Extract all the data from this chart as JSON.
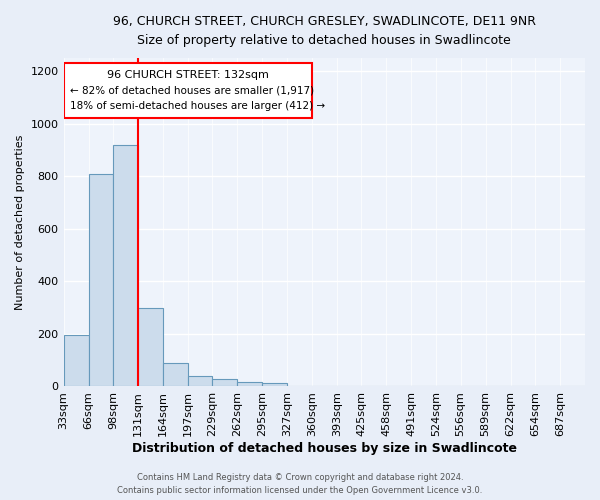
{
  "title1": "96, CHURCH STREET, CHURCH GRESLEY, SWADLINCOTE, DE11 9NR",
  "title2": "Size of property relative to detached houses in Swadlincote",
  "xlabel": "Distribution of detached houses by size in Swadlincote",
  "ylabel": "Number of detached properties",
  "bin_labels": [
    "33sqm",
    "66sqm",
    "98sqm",
    "131sqm",
    "164sqm",
    "197sqm",
    "229sqm",
    "262sqm",
    "295sqm",
    "327sqm",
    "360sqm",
    "393sqm",
    "425sqm",
    "458sqm",
    "491sqm",
    "524sqm",
    "556sqm",
    "589sqm",
    "622sqm",
    "654sqm",
    "687sqm"
  ],
  "bin_edges": [
    33,
    66,
    98,
    131,
    164,
    197,
    229,
    262,
    295,
    327,
    360,
    393,
    425,
    458,
    491,
    524,
    556,
    589,
    622,
    654,
    687,
    720
  ],
  "bar_heights": [
    195,
    810,
    920,
    300,
    90,
    40,
    30,
    18,
    15,
    0,
    0,
    0,
    0,
    0,
    0,
    0,
    0,
    0,
    0,
    0,
    0
  ],
  "bar_color": "#ccdcec",
  "bar_edge_color": "#6699bb",
  "bar_edge_width": 0.8,
  "red_line_x": 131,
  "ylim": [
    0,
    1250
  ],
  "yticks": [
    0,
    200,
    400,
    600,
    800,
    1000,
    1200
  ],
  "annotation_title": "96 CHURCH STREET: 132sqm",
  "annotation_line1": "← 82% of detached houses are smaller (1,917)",
  "annotation_line2": "18% of semi-detached houses are larger (412) →",
  "background_color": "#e8eef8",
  "plot_bg_color": "#eef3fb",
  "grid_color": "#ffffff",
  "footer1": "Contains HM Land Registry data © Crown copyright and database right 2024.",
  "footer2": "Contains public sector information licensed under the Open Government Licence v3.0."
}
